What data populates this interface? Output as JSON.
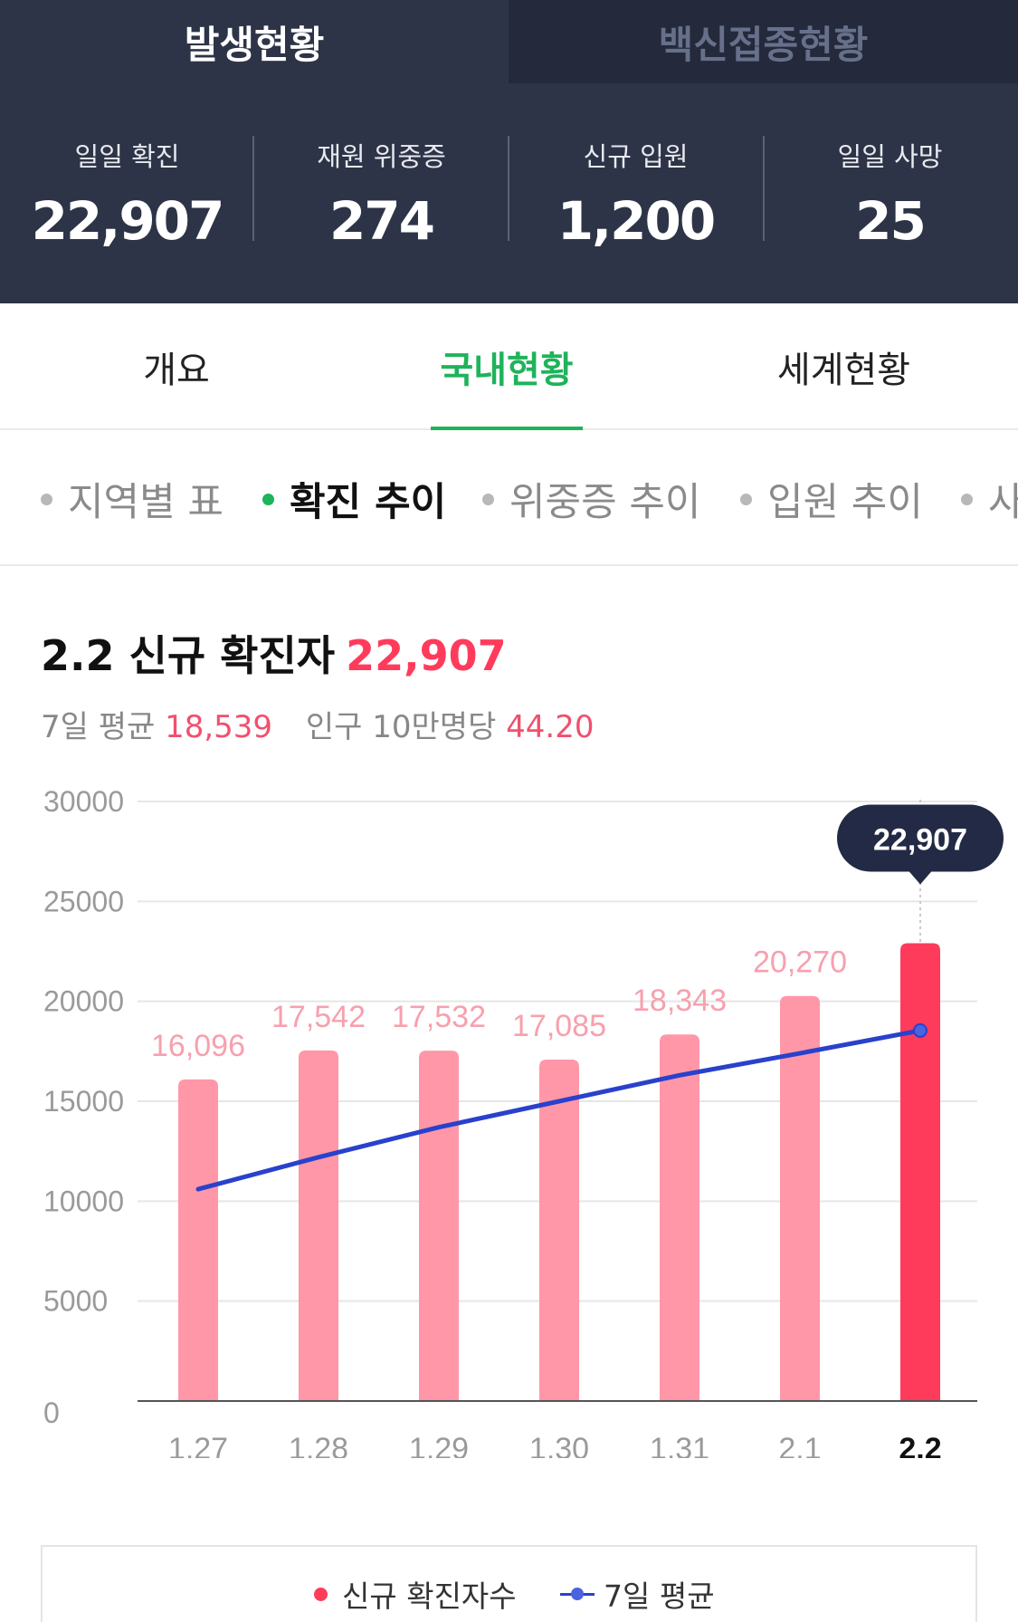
{
  "top_tabs": {
    "active": "발생현황",
    "inactive": "백신접종현황"
  },
  "stats": [
    {
      "label": "일일 확진",
      "value": "22,907"
    },
    {
      "label": "재원 위중증",
      "value": "274"
    },
    {
      "label": "신규 입원",
      "value": "1,200"
    },
    {
      "label": "일일 사망",
      "value": "25"
    }
  ],
  "main_tabs": [
    "개요",
    "국내현황",
    "세계현황"
  ],
  "sub_tabs": [
    "지역별 표",
    "확진 추이",
    "위중증 추이",
    "입원 추이",
    "사"
  ],
  "headline": {
    "date": "2.2 신규 확진자",
    "value": "22,907"
  },
  "subline": {
    "avg_label": "7일 평균",
    "avg_value": "18,539",
    "per_label": "인구 10만명당",
    "per_value": "44.20"
  },
  "colors": {
    "bar": "#ff97a8",
    "bar_highlight": "#ff3b5c",
    "avg_line": "#2941cc",
    "accent_green": "#1fb35b",
    "header_bg": "#2e3447",
    "tooltip_bg": "#232a45"
  },
  "chart_data": {
    "type": "bar",
    "categories": [
      "1.27",
      "1.28",
      "1.29",
      "1.30",
      "1.31",
      "2.1",
      "2.2"
    ],
    "series": [
      {
        "name": "신규 확진자수",
        "values": [
          16096,
          17542,
          17532,
          17085,
          18343,
          20270,
          22907
        ]
      },
      {
        "name": "7일 평균",
        "type": "line",
        "values": [
          10600,
          12200,
          13700,
          15000,
          16300,
          17400,
          18539
        ]
      }
    ],
    "data_labels": [
      "16,096",
      "17,542",
      "17,532",
      "17,085",
      "18,343",
      "20,270",
      "22,907"
    ],
    "y_ticks": [
      "30000",
      "25000",
      "20000",
      "15000",
      "10000",
      "5000",
      "0"
    ],
    "ylim": [
      0,
      30000
    ],
    "highlight_index": 6,
    "tooltip": "22,907",
    "grid": true,
    "legend_position": "bottom"
  },
  "legend": {
    "bar_label": "신규 확진자수",
    "line_label": "7일 평균"
  }
}
